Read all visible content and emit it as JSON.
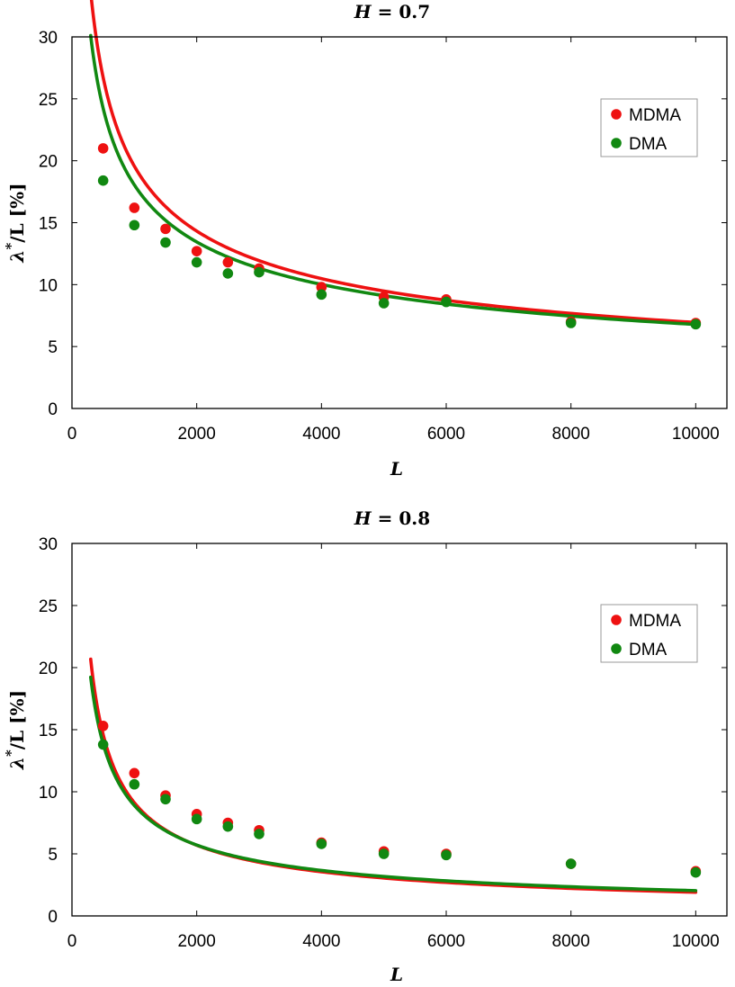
{
  "chart_data": [
    {
      "type": "scatter",
      "title_var": "H",
      "title_value": " = 0.7",
      "xlabel": "L",
      "ylabel_greek": "λ",
      "ylabel_star": "*",
      "ylabel_rest": "/L [%]",
      "xlim": [
        0,
        10500
      ],
      "ylim": [
        0,
        30
      ],
      "xticks": [
        0,
        2000,
        4000,
        6000,
        8000,
        10000
      ],
      "yticks": [
        0,
        5,
        10,
        15,
        20,
        25,
        30
      ],
      "legend_position": "top-right",
      "series": [
        {
          "name": "MDMA",
          "color": "#ee1111",
          "x": [
            500,
            1000,
            1500,
            2000,
            2500,
            3000,
            4000,
            5000,
            6000,
            8000,
            10000
          ],
          "y": [
            21.0,
            16.2,
            14.5,
            12.7,
            11.8,
            11.3,
            9.8,
            9.0,
            8.8,
            7.0,
            6.9
          ],
          "fit": {
            "a": 438,
            "b": 0.45,
            "xmin": 300,
            "xmax": 10000
          }
        },
        {
          "name": "DMA",
          "color": "#118811",
          "x": [
            500,
            1000,
            1500,
            2000,
            2500,
            3000,
            4000,
            5000,
            6000,
            8000,
            10000
          ],
          "y": [
            18.4,
            14.8,
            13.4,
            11.8,
            10.9,
            11.0,
            9.2,
            8.5,
            8.6,
            6.9,
            6.8
          ],
          "fit": {
            "a": 340,
            "b": 0.425,
            "xmin": 300,
            "xmax": 10000
          }
        }
      ]
    },
    {
      "type": "scatter",
      "title_var": "H",
      "title_value": " = 0.8",
      "xlabel": "L",
      "ylabel_greek": "λ",
      "ylabel_star": "*",
      "ylabel_rest": "/L [%]",
      "xlim": [
        0,
        10500
      ],
      "ylim": [
        0,
        30
      ],
      "xticks": [
        0,
        2000,
        4000,
        6000,
        8000,
        10000
      ],
      "yticks": [
        0,
        5,
        10,
        15,
        20,
        25,
        30
      ],
      "legend_position": "top-right",
      "series": [
        {
          "name": "MDMA",
          "color": "#ee1111",
          "x": [
            500,
            1000,
            1500,
            2000,
            2500,
            3000,
            4000,
            5000,
            6000,
            8000,
            10000
          ],
          "y": [
            15.3,
            11.5,
            9.7,
            8.2,
            7.5,
            6.9,
            5.9,
            5.2,
            5.0,
            4.2,
            3.6
          ],
          "fit": {
            "a": 1000,
            "b": 0.68,
            "xmin": 300,
            "xmax": 10000
          }
        },
        {
          "name": "DMA",
          "color": "#118811",
          "x": [
            500,
            1000,
            1500,
            2000,
            2500,
            3000,
            4000,
            5000,
            6000,
            8000,
            10000
          ],
          "y": [
            13.8,
            10.6,
            9.4,
            7.8,
            7.2,
            6.6,
            5.8,
            5.0,
            4.9,
            4.2,
            3.5
          ],
          "fit": {
            "a": 740,
            "b": 0.64,
            "xmin": 300,
            "xmax": 10000
          }
        }
      ]
    }
  ]
}
